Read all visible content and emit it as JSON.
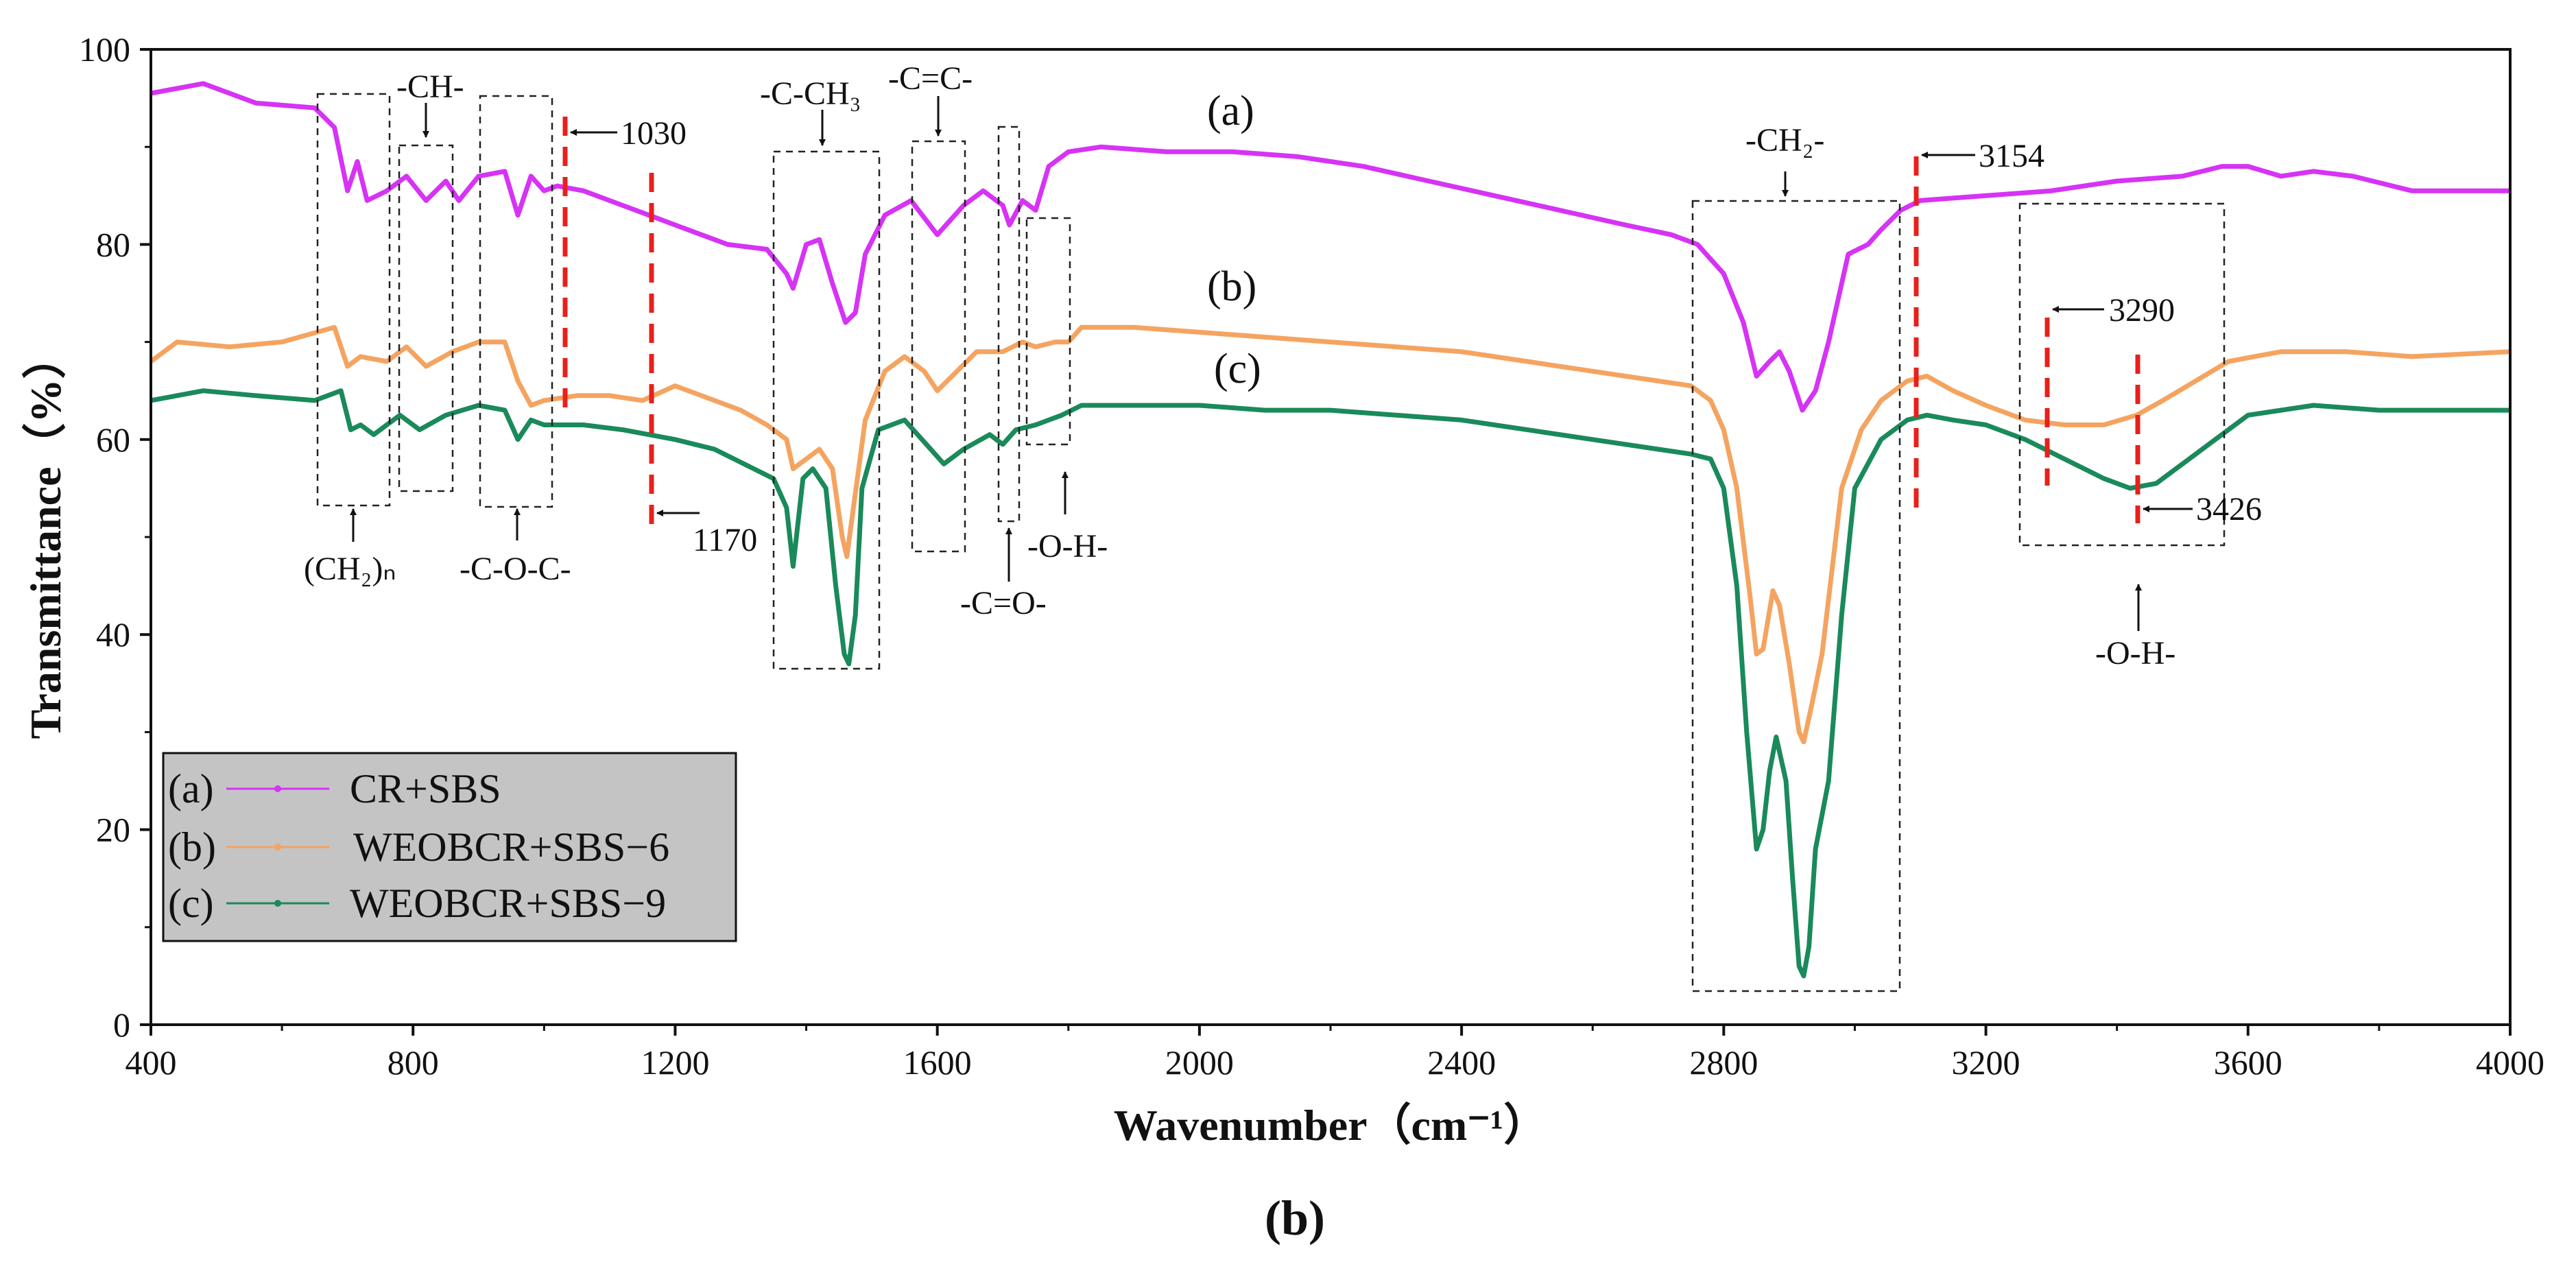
{
  "chart_data": {
    "type": "line",
    "title": "",
    "caption": "(b)",
    "xlabel": "Wavenumber（cm⁻¹）",
    "ylabel": "Transmittance（%）",
    "xlim": [
      400,
      4000
    ],
    "ylim": [
      0,
      100
    ],
    "x_ticks": [
      "400",
      "800",
      "1200",
      "1600",
      "2000",
      "2400",
      "2800",
      "3200",
      "3600",
      "4000"
    ],
    "y_ticks": [
      "0",
      "20",
      "40",
      "60",
      "80",
      "100"
    ],
    "grid": false,
    "legend_position": "bottom-left",
    "series": [
      {
        "name": "CR+SBS",
        "tag": "(a)",
        "color": "#d633f5",
        "points": [
          [
            400,
            95.5
          ],
          [
            480,
            96.5
          ],
          [
            560,
            94.5
          ],
          [
            650,
            94
          ],
          [
            680,
            92
          ],
          [
            700,
            85.5
          ],
          [
            715,
            88.5
          ],
          [
            730,
            84.5
          ],
          [
            760,
            85.5
          ],
          [
            790,
            87
          ],
          [
            820,
            84.5
          ],
          [
            850,
            86.5
          ],
          [
            870,
            84.5
          ],
          [
            900,
            87
          ],
          [
            940,
            87.5
          ],
          [
            960,
            83
          ],
          [
            980,
            87
          ],
          [
            1000,
            85.5
          ],
          [
            1020,
            86
          ],
          [
            1060,
            85.5
          ],
          [
            1120,
            84
          ],
          [
            1160,
            83
          ],
          [
            1200,
            82
          ],
          [
            1280,
            80
          ],
          [
            1340,
            79.5
          ],
          [
            1370,
            77
          ],
          [
            1380,
            75.5
          ],
          [
            1400,
            80
          ],
          [
            1420,
            80.5
          ],
          [
            1440,
            76
          ],
          [
            1460,
            72
          ],
          [
            1475,
            73
          ],
          [
            1490,
            79
          ],
          [
            1520,
            83
          ],
          [
            1560,
            84.5
          ],
          [
            1600,
            81
          ],
          [
            1640,
            84
          ],
          [
            1670,
            85.5
          ],
          [
            1700,
            84
          ],
          [
            1710,
            82
          ],
          [
            1730,
            84.5
          ],
          [
            1750,
            83.5
          ],
          [
            1770,
            88
          ],
          [
            1800,
            89.5
          ],
          [
            1850,
            90
          ],
          [
            1950,
            89.5
          ],
          [
            2050,
            89.5
          ],
          [
            2150,
            89
          ],
          [
            2250,
            88
          ],
          [
            2350,
            86.5
          ],
          [
            2450,
            85
          ],
          [
            2550,
            83.5
          ],
          [
            2650,
            82
          ],
          [
            2720,
            81
          ],
          [
            2760,
            80
          ],
          [
            2800,
            77
          ],
          [
            2830,
            72
          ],
          [
            2850,
            66.5
          ],
          [
            2870,
            68
          ],
          [
            2885,
            69
          ],
          [
            2900,
            67
          ],
          [
            2920,
            63
          ],
          [
            2940,
            65
          ],
          [
            2960,
            70
          ],
          [
            2990,
            79
          ],
          [
            3020,
            80
          ],
          [
            3040,
            81.5
          ],
          [
            3070,
            83.5
          ],
          [
            3100,
            84.5
          ],
          [
            3200,
            85
          ],
          [
            3300,
            85.5
          ],
          [
            3400,
            86.5
          ],
          [
            3500,
            87
          ],
          [
            3560,
            88
          ],
          [
            3600,
            88
          ],
          [
            3650,
            87
          ],
          [
            3700,
            87.5
          ],
          [
            3760,
            87
          ],
          [
            3850,
            85.5
          ],
          [
            4000,
            85.5
          ]
        ]
      },
      {
        "name": "WEOBCR+SBS−6",
        "tag": "(b)",
        "color": "#f4a460",
        "points": [
          [
            400,
            68
          ],
          [
            440,
            70
          ],
          [
            520,
            69.5
          ],
          [
            600,
            70
          ],
          [
            680,
            71.5
          ],
          [
            700,
            67.5
          ],
          [
            720,
            68.5
          ],
          [
            760,
            68
          ],
          [
            790,
            69.5
          ],
          [
            820,
            67.5
          ],
          [
            860,
            69
          ],
          [
            900,
            70
          ],
          [
            940,
            70
          ],
          [
            960,
            66
          ],
          [
            980,
            63.5
          ],
          [
            1000,
            64
          ],
          [
            1050,
            64.5
          ],
          [
            1100,
            64.5
          ],
          [
            1150,
            64
          ],
          [
            1200,
            65.5
          ],
          [
            1260,
            64
          ],
          [
            1300,
            63
          ],
          [
            1340,
            61.5
          ],
          [
            1370,
            60
          ],
          [
            1380,
            57
          ],
          [
            1400,
            58
          ],
          [
            1420,
            59
          ],
          [
            1440,
            57
          ],
          [
            1455,
            50
          ],
          [
            1462,
            48
          ],
          [
            1470,
            52
          ],
          [
            1490,
            62
          ],
          [
            1520,
            67
          ],
          [
            1550,
            68.5
          ],
          [
            1580,
            67
          ],
          [
            1600,
            65
          ],
          [
            1630,
            67
          ],
          [
            1660,
            69
          ],
          [
            1700,
            69
          ],
          [
            1730,
            70
          ],
          [
            1750,
            69.5
          ],
          [
            1780,
            70
          ],
          [
            1800,
            70
          ],
          [
            1820,
            71.5
          ],
          [
            1900,
            71.5
          ],
          [
            2000,
            71
          ],
          [
            2100,
            70.5
          ],
          [
            2200,
            70
          ],
          [
            2300,
            69.5
          ],
          [
            2400,
            69
          ],
          [
            2500,
            68
          ],
          [
            2600,
            67
          ],
          [
            2700,
            66
          ],
          [
            2750,
            65.5
          ],
          [
            2780,
            64
          ],
          [
            2800,
            61
          ],
          [
            2820,
            55
          ],
          [
            2840,
            44
          ],
          [
            2850,
            38
          ],
          [
            2860,
            38.5
          ],
          [
            2875,
            44.5
          ],
          [
            2885,
            43
          ],
          [
            2900,
            37
          ],
          [
            2915,
            30
          ],
          [
            2922,
            29
          ],
          [
            2935,
            33
          ],
          [
            2950,
            38
          ],
          [
            2980,
            55
          ],
          [
            3010,
            61
          ],
          [
            3040,
            64
          ],
          [
            3080,
            66
          ],
          [
            3110,
            66.5
          ],
          [
            3150,
            65
          ],
          [
            3200,
            63.5
          ],
          [
            3260,
            62
          ],
          [
            3320,
            61.5
          ],
          [
            3380,
            61.5
          ],
          [
            3430,
            62.5
          ],
          [
            3470,
            64
          ],
          [
            3520,
            66
          ],
          [
            3570,
            68
          ],
          [
            3650,
            69
          ],
          [
            3750,
            69
          ],
          [
            3850,
            68.5
          ],
          [
            4000,
            69
          ]
        ]
      },
      {
        "name": "WEOBCR+SBS−9",
        "tag": "(c)",
        "color": "#1a8a5a",
        "points": [
          [
            400,
            64
          ],
          [
            480,
            65
          ],
          [
            560,
            64.5
          ],
          [
            650,
            64
          ],
          [
            690,
            65
          ],
          [
            705,
            61
          ],
          [
            720,
            61.5
          ],
          [
            740,
            60.5
          ],
          [
            780,
            62.5
          ],
          [
            810,
            61
          ],
          [
            850,
            62.5
          ],
          [
            900,
            63.5
          ],
          [
            940,
            63
          ],
          [
            960,
            60
          ],
          [
            980,
            62
          ],
          [
            1000,
            61.5
          ],
          [
            1060,
            61.5
          ],
          [
            1120,
            61
          ],
          [
            1160,
            60.5
          ],
          [
            1200,
            60
          ],
          [
            1260,
            59
          ],
          [
            1320,
            57
          ],
          [
            1350,
            56
          ],
          [
            1370,
            53
          ],
          [
            1380,
            47
          ],
          [
            1395,
            56
          ],
          [
            1410,
            57
          ],
          [
            1430,
            55
          ],
          [
            1445,
            45
          ],
          [
            1458,
            38
          ],
          [
            1465,
            37
          ],
          [
            1475,
            42
          ],
          [
            1485,
            55
          ],
          [
            1510,
            61
          ],
          [
            1550,
            62
          ],
          [
            1590,
            59
          ],
          [
            1610,
            57.5
          ],
          [
            1640,
            59
          ],
          [
            1680,
            60.5
          ],
          [
            1700,
            59.5
          ],
          [
            1720,
            61
          ],
          [
            1750,
            61.5
          ],
          [
            1770,
            62
          ],
          [
            1790,
            62.5
          ],
          [
            1820,
            63.5
          ],
          [
            1900,
            63.5
          ],
          [
            2000,
            63.5
          ],
          [
            2100,
            63
          ],
          [
            2200,
            63
          ],
          [
            2300,
            62.5
          ],
          [
            2400,
            62
          ],
          [
            2500,
            61
          ],
          [
            2600,
            60
          ],
          [
            2700,
            59
          ],
          [
            2750,
            58.5
          ],
          [
            2780,
            58
          ],
          [
            2800,
            55
          ],
          [
            2820,
            45
          ],
          [
            2835,
            30
          ],
          [
            2850,
            18
          ],
          [
            2860,
            20
          ],
          [
            2870,
            26
          ],
          [
            2880,
            29.5
          ],
          [
            2895,
            25
          ],
          [
            2905,
            15
          ],
          [
            2915,
            6
          ],
          [
            2922,
            5
          ],
          [
            2930,
            8
          ],
          [
            2940,
            18
          ],
          [
            2960,
            25
          ],
          [
            2980,
            42
          ],
          [
            3000,
            55
          ],
          [
            3040,
            60
          ],
          [
            3080,
            62
          ],
          [
            3110,
            62.5
          ],
          [
            3150,
            62
          ],
          [
            3200,
            61.5
          ],
          [
            3260,
            60
          ],
          [
            3320,
            58
          ],
          [
            3380,
            56
          ],
          [
            3420,
            55
          ],
          [
            3460,
            55.5
          ],
          [
            3500,
            57.5
          ],
          [
            3550,
            60
          ],
          [
            3600,
            62.5
          ],
          [
            3700,
            63.5
          ],
          [
            3800,
            63
          ],
          [
            3900,
            63
          ],
          [
            4000,
            63
          ]
        ]
      }
    ],
    "annotations": {
      "ch2n": "(CH₂)ₙ",
      "ch": "-CH-",
      "coc": "-C-O-C-",
      "n1030": "1030",
      "n1170": "1170",
      "cch3": "-C-CH₃",
      "cc_double": "-C=C-",
      "co_double": "-C=O-",
      "oh_low": "-O-H-",
      "ch2": "-CH₂-",
      "n3154": "3154",
      "n3290": "3290",
      "n3426": "3426",
      "oh_high": "-O-H-"
    }
  }
}
